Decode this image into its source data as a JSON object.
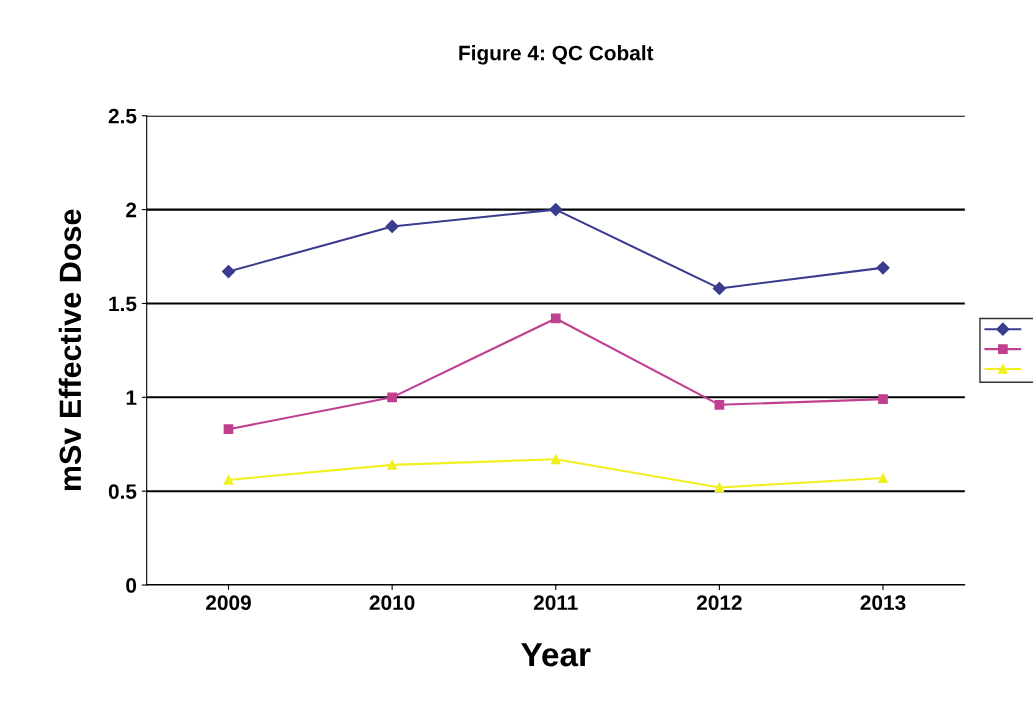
{
  "chart_data": {
    "type": "line",
    "title": "Figure 4: QC Cobalt",
    "xlabel": "Year",
    "ylabel": "mSv Effective Dose",
    "categories": [
      "2009",
      "2010",
      "2011",
      "2012",
      "2013"
    ],
    "series": [
      {
        "color": "#3b3b8f",
        "marker": "diamond",
        "values": [
          1.67,
          1.91,
          2.0,
          1.58,
          1.69
        ]
      },
      {
        "color": "#c0408f",
        "marker": "square",
        "values": [
          0.83,
          1.0,
          1.42,
          0.96,
          0.99
        ]
      },
      {
        "color": "#f0f020",
        "marker": "triangle",
        "values": [
          0.56,
          0.64,
          0.67,
          0.52,
          0.57
        ]
      }
    ],
    "ylim": [
      0,
      2.5
    ],
    "yticks": [
      0,
      0.5,
      1,
      1.5,
      2,
      2.5
    ],
    "grid": "y"
  }
}
